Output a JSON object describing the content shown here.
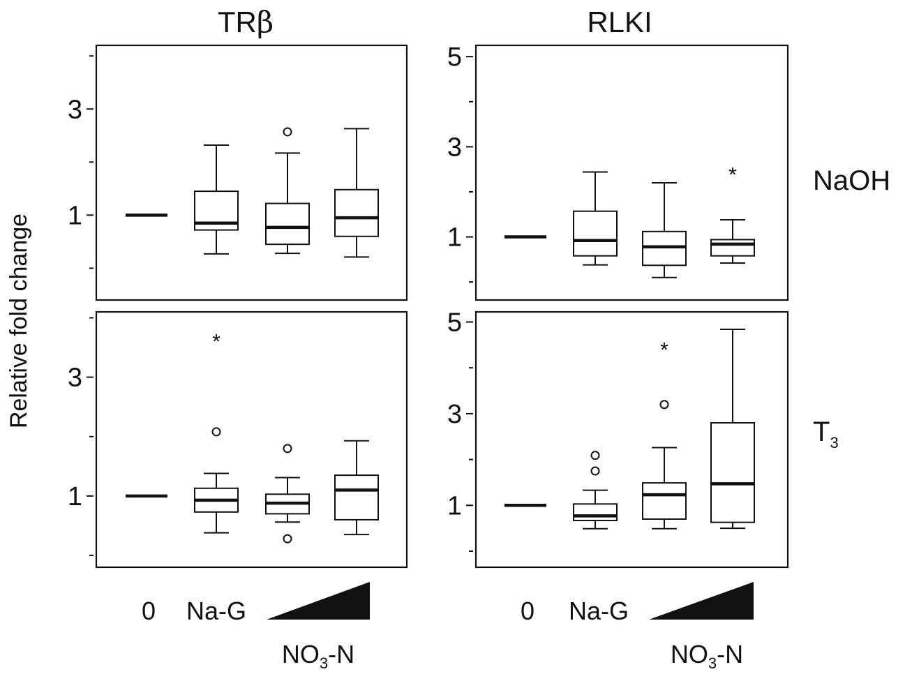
{
  "columns": [
    {
      "title": "TR",
      "title_symbol": "β"
    },
    {
      "title": "RLKI",
      "title_symbol": ""
    }
  ],
  "rows": [
    {
      "label": "NaOH",
      "subscript": ""
    },
    {
      "label": "T",
      "subscript": "3"
    }
  ],
  "ylabel": "Relative fold change",
  "x_category_labels": [
    "0",
    "Na-G"
  ],
  "x_gradient_label": "NO",
  "x_gradient_label_sub": "3",
  "x_gradient_label_suffix": "-N",
  "chart_data": [
    {
      "type": "box",
      "panel": "TRβ / NaOH",
      "categories": [
        "0",
        "Na-G",
        "NO3-N low",
        "NO3-N high"
      ],
      "ylim": [
        -0.6,
        4.2
      ],
      "yticks_labeled": [
        1,
        3
      ],
      "yticks_minor": [
        0,
        2,
        4
      ],
      "boxes": [
        {
          "median": 1.0,
          "control": true
        },
        {
          "median": 0.85,
          "q1": 0.72,
          "q3": 1.45,
          "whislo": 0.27,
          "whishi": 2.32
        },
        {
          "median": 0.77,
          "q1": 0.45,
          "q3": 1.22,
          "whislo": 0.28,
          "whishi": 2.17,
          "outliers": [
            2.57
          ]
        },
        {
          "median": 0.95,
          "q1": 0.6,
          "q3": 1.48,
          "whislo": 0.21,
          "whishi": 2.63
        }
      ]
    },
    {
      "type": "box",
      "panel": "RLKI / NaOH",
      "categories": [
        "0",
        "Na-G",
        "NO3-N low",
        "NO3-N high"
      ],
      "ylim": [
        -0.4,
        5.25
      ],
      "yticks_labeled": [
        1,
        3,
        5
      ],
      "yticks_minor": [
        0,
        2,
        4
      ],
      "boxes": [
        {
          "median": 1.0,
          "control": true
        },
        {
          "median": 0.92,
          "q1": 0.58,
          "q3": 1.57,
          "whislo": 0.38,
          "whishi": 2.44
        },
        {
          "median": 0.78,
          "q1": 0.37,
          "q3": 1.12,
          "whislo": 0.1,
          "whishi": 2.2
        },
        {
          "median": 0.84,
          "q1": 0.58,
          "q3": 0.94,
          "whislo": 0.42,
          "whishi": 1.38,
          "extremes": [
            2.44
          ]
        }
      ]
    },
    {
      "type": "box",
      "panel": "TRβ / T3",
      "categories": [
        "0",
        "Na-G",
        "NO3-N low",
        "NO3-N high"
      ],
      "ylim": [
        -0.2,
        4.1
      ],
      "yticks_labeled": [
        1,
        3
      ],
      "yticks_minor": [
        0,
        2,
        4
      ],
      "boxes": [
        {
          "median": 1.0,
          "control": true
        },
        {
          "median": 0.93,
          "q1": 0.73,
          "q3": 1.13,
          "whislo": 0.38,
          "whishi": 1.38,
          "outliers": [
            2.08
          ],
          "extremes": [
            3.65
          ]
        },
        {
          "median": 0.88,
          "q1": 0.7,
          "q3": 1.03,
          "whislo": 0.56,
          "whishi": 1.31,
          "outliers": [
            1.8,
            0.28
          ]
        },
        {
          "median": 1.1,
          "q1": 0.6,
          "q3": 1.35,
          "whislo": 0.35,
          "whishi": 1.93
        }
      ]
    },
    {
      "type": "box",
      "panel": "RLKI / T3",
      "categories": [
        "0",
        "Na-G",
        "NO3-N low",
        "NO3-N high"
      ],
      "ylim": [
        -0.35,
        5.22
      ],
      "yticks_labeled": [
        1,
        3,
        5
      ],
      "yticks_minor": [
        0,
        2,
        4
      ],
      "boxes": [
        {
          "median": 1.0,
          "control": true
        },
        {
          "median": 0.77,
          "q1": 0.67,
          "q3": 1.03,
          "whislo": 0.49,
          "whishi": 1.33,
          "outliers": [
            2.09,
            1.75
          ]
        },
        {
          "median": 1.23,
          "q1": 0.7,
          "q3": 1.49,
          "whislo": 0.49,
          "whishi": 2.26,
          "outliers": [
            3.2
          ],
          "extremes": [
            4.45
          ]
        },
        {
          "median": 1.47,
          "q1": 0.63,
          "q3": 2.8,
          "whislo": 0.5,
          "whishi": 4.84
        }
      ]
    }
  ]
}
